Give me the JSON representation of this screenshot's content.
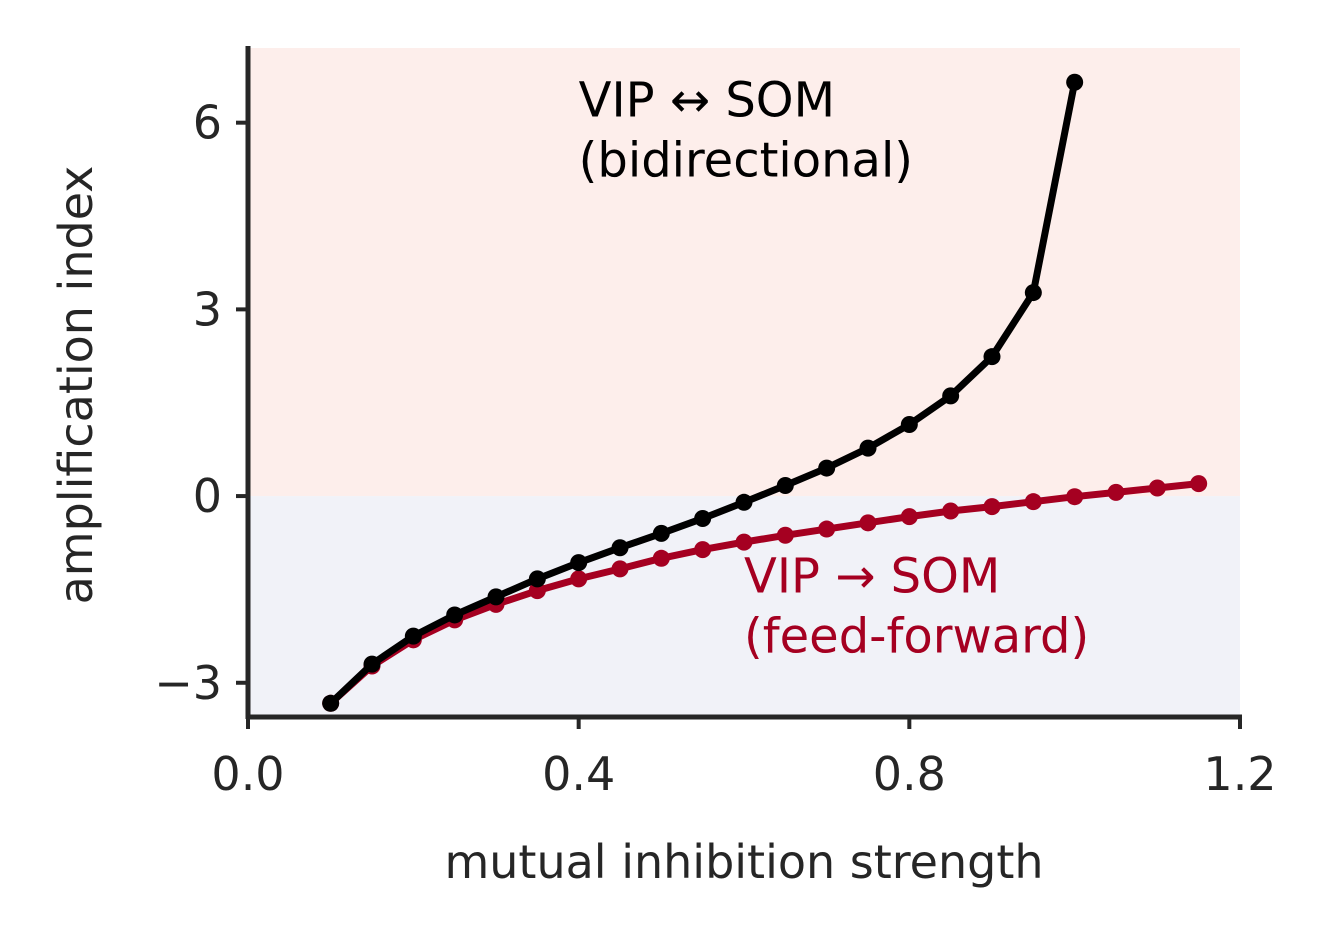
{
  "chart_data": {
    "type": "line",
    "xlabel": "mutual inhibition strength",
    "ylabel": "amplification index",
    "xlim": [
      0.0,
      1.2
    ],
    "ylim": [
      -3.55,
      7.2
    ],
    "xticks": [
      "0.0",
      "0.4",
      "0.8",
      "1.2"
    ],
    "xtick_values": [
      0.0,
      0.4,
      0.8,
      1.2
    ],
    "yticks": [
      "−3",
      "0",
      "3",
      "6"
    ],
    "ytick_values": [
      -3,
      0,
      3,
      6
    ],
    "grid": false,
    "regions": [
      {
        "from": 0,
        "to": 7.2,
        "color": "#fdeeeb"
      },
      {
        "from": -3.55,
        "to": 0,
        "color": "#f1f2f8"
      }
    ],
    "series": [
      {
        "color": "#000000",
        "x": [
          0.1,
          0.15,
          0.2,
          0.25,
          0.3,
          0.35,
          0.4,
          0.45,
          0.5,
          0.55,
          0.6,
          0.65,
          0.7,
          0.75,
          0.8,
          0.85,
          0.9,
          0.95,
          1.0
        ],
        "y": [
          -3.33,
          -2.7,
          -2.25,
          -1.91,
          -1.62,
          -1.33,
          -1.07,
          -0.83,
          -0.6,
          -0.36,
          -0.1,
          0.17,
          0.45,
          0.77,
          1.15,
          1.61,
          2.24,
          3.27,
          6.65
        ]
      },
      {
        "color": "#a50021",
        "x": [
          0.1,
          0.15,
          0.2,
          0.25,
          0.3,
          0.35,
          0.4,
          0.45,
          0.5,
          0.55,
          0.6,
          0.65,
          0.7,
          0.75,
          0.8,
          0.85,
          0.9,
          0.95,
          1.0,
          1.05,
          1.1,
          1.15
        ],
        "y": [
          -3.33,
          -2.73,
          -2.31,
          -1.99,
          -1.74,
          -1.52,
          -1.33,
          -1.17,
          -1.0,
          -0.86,
          -0.74,
          -0.63,
          -0.53,
          -0.43,
          -0.33,
          -0.24,
          -0.17,
          -0.09,
          -0.01,
          0.06,
          0.13,
          0.2
        ]
      }
    ],
    "annotations": [
      {
        "lines": [
          "VIP ↔ SOM",
          "(bidirectional)"
        ],
        "color": "#000000",
        "x": 0.4,
        "y": 6.1
      },
      {
        "lines": [
          "VIP → SOM",
          "(feed-forward)"
        ],
        "color": "#a50021",
        "x": 0.6,
        "y": -1.55
      }
    ]
  }
}
